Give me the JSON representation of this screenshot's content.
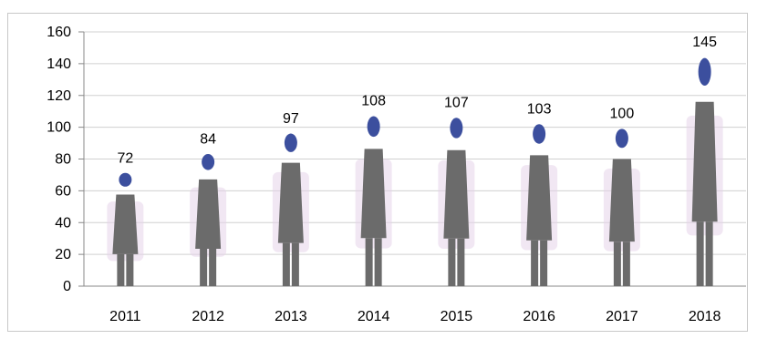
{
  "chart_data": {
    "type": "bar",
    "pictograph": "person-figure",
    "categories": [
      "2011",
      "2012",
      "2013",
      "2014",
      "2015",
      "2016",
      "2017",
      "2018"
    ],
    "values": [
      72,
      84,
      97,
      108,
      107,
      103,
      100,
      145
    ],
    "data_labels": [
      "72",
      "84",
      "97",
      "108",
      "107",
      "103",
      "100",
      "145"
    ],
    "title": "",
    "xlabel": "",
    "ylabel": "",
    "ylim": [
      0,
      160
    ],
    "yticks": [
      0,
      20,
      40,
      60,
      80,
      100,
      120,
      140,
      160
    ],
    "grid": true,
    "legend": "none",
    "colors": {
      "figure_body": "#6b6b6b",
      "figure_head": "#3c4f9e",
      "figure_shirt": "#e6d4ea",
      "axis": "#888888",
      "grid": "#d0d0d0"
    }
  }
}
